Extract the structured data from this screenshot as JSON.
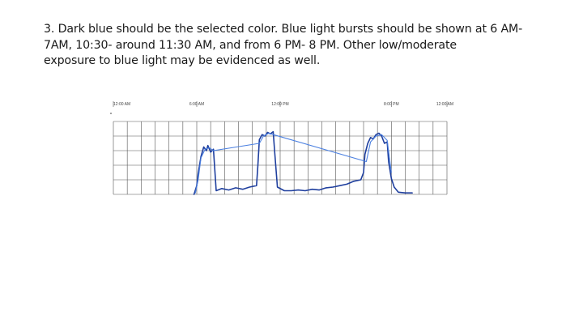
{
  "slide": {
    "text_lines": [
      "3. Dark blue should be the selected color. Blue light bursts should be shown at 6 AM-",
      "7AM, 10:30- around 11:30 AM, and from 6 PM- 8 PM. Other low/moderate",
      "exposure to blue light may be evidenced as well."
    ]
  },
  "chart_data": {
    "type": "line",
    "title": "",
    "xlabel": "",
    "ylabel": "",
    "x_tick_labels": [
      "12:00 AM",
      "6:00 AM",
      "12:00 PM",
      "8:00 PM",
      "12:00 AM"
    ],
    "x_tick_hours": [
      0,
      6,
      12,
      20,
      24
    ],
    "xlim": [
      0,
      24
    ],
    "ylim": [
      0,
      100
    ],
    "grid": true,
    "colors": {
      "dark_blue": "#1f3f9e",
      "light_blue": "#4a7fe0",
      "grid": "#555555",
      "axis": "#333333"
    },
    "series": [
      {
        "color_key": "dark_blue",
        "x": [
          0,
          5.8,
          6.0,
          6.1,
          6.3,
          6.5,
          6.7,
          6.8,
          7.0,
          7.2,
          7.4,
          7.8,
          8.3,
          8.8,
          9.3,
          9.8,
          10.3,
          10.4,
          10.5,
          10.7,
          10.9,
          11.1,
          11.3,
          11.5,
          11.6,
          11.8,
          12.3,
          12.8,
          13.3,
          13.8,
          14.3,
          14.8,
          15.3,
          15.8,
          16.3,
          16.8,
          17.3,
          17.8,
          18.0,
          18.1,
          18.3,
          18.5,
          18.7,
          18.9,
          19.1,
          19.3,
          19.5,
          19.7,
          19.8,
          20.0,
          20.2,
          20.5,
          21.0,
          21.5
        ],
        "y": [
          null,
          0,
          12,
          28,
          52,
          65,
          60,
          67,
          58,
          62,
          5,
          8,
          6,
          9,
          7,
          10,
          12,
          40,
          75,
          82,
          80,
          85,
          83,
          86,
          60,
          10,
          5,
          5,
          6,
          5,
          7,
          6,
          9,
          10,
          12,
          14,
          18,
          20,
          30,
          55,
          70,
          78,
          76,
          82,
          84,
          80,
          70,
          72,
          45,
          22,
          10,
          3,
          2,
          2
        ]
      },
      {
        "color_key": "light_blue",
        "x": [
          5.9,
          6.1,
          6.3,
          6.6,
          6.9,
          7.2,
          10.5,
          10.8,
          11.2,
          11.5,
          18.2,
          18.5,
          18.9,
          19.3,
          19.7,
          20.0
        ],
        "y": [
          2,
          20,
          50,
          62,
          64,
          60,
          70,
          80,
          84,
          82,
          45,
          72,
          80,
          82,
          74,
          30
        ]
      }
    ]
  }
}
